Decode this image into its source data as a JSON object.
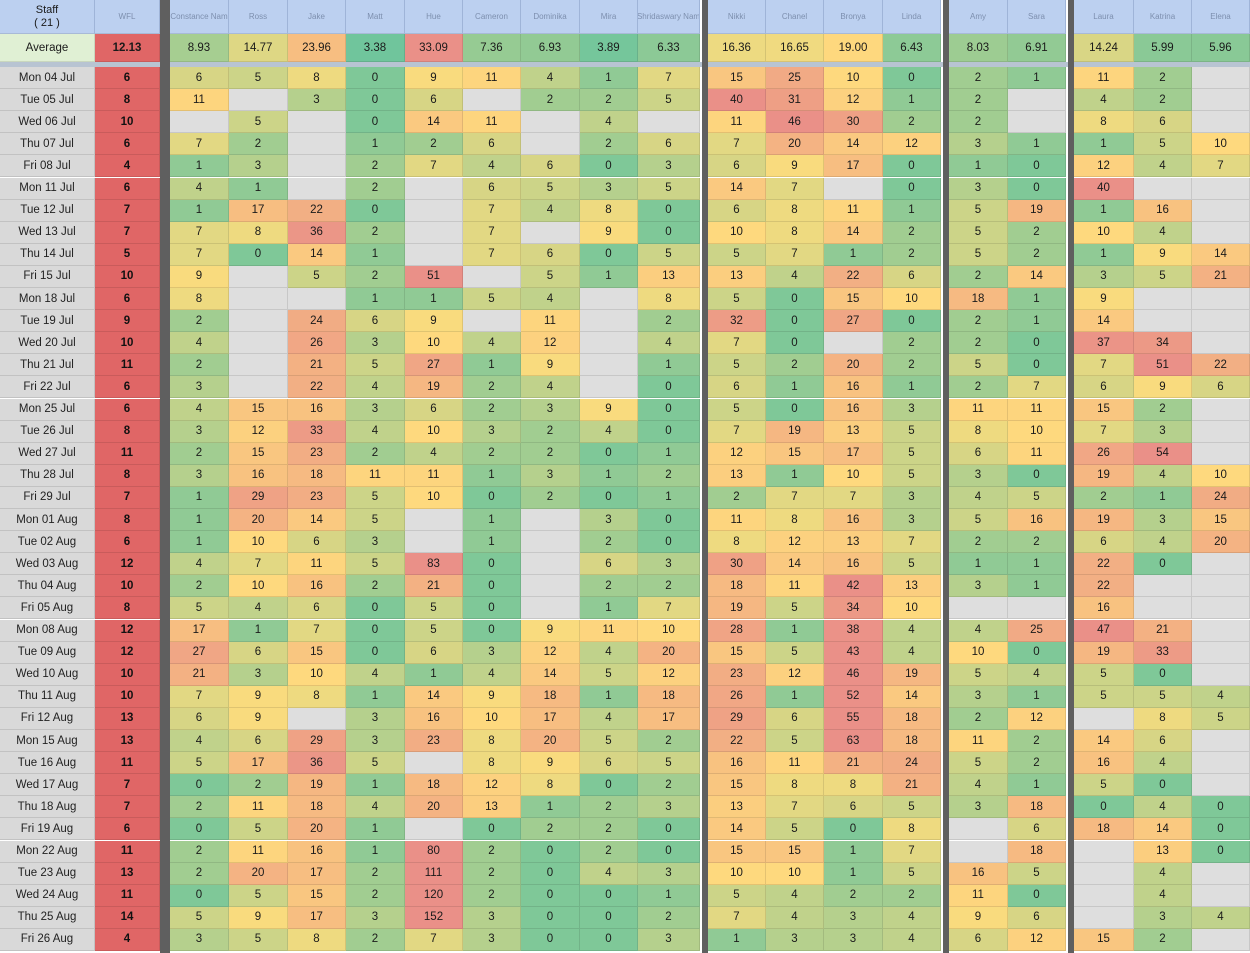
{
  "sheet": {
    "staff_header": "Staff",
    "staff_count": "( 21 )",
    "average_label": "Average",
    "column_names": [
      "WFL",
      "Constance Nam",
      "Ross",
      "Jake",
      "Matt",
      "Hue",
      "Cameron",
      "Dominika",
      "Mira",
      "Shridaswary Nam",
      "Nikki",
      "Chanel",
      "Bronya",
      "Linda",
      "Amy",
      "Sara",
      "Laura",
      "Katrina",
      "Elena"
    ],
    "averages": [
      "12.13",
      "8.93",
      "14.77",
      "23.96",
      "3.38",
      "33.09",
      "7.36",
      "6.93",
      "3.89",
      "6.33",
      "16.36",
      "16.65",
      "19.00",
      "6.43",
      "8.03",
      "6.91",
      "14.24",
      "5.99",
      "5.96"
    ],
    "rows": [
      {
        "date": "Mon 04 Jul",
        "cells": [
          "6",
          "6",
          "5",
          "8",
          "0",
          "9",
          "11",
          "4",
          "1",
          "7",
          "15",
          "25",
          "10",
          "0",
          "2",
          "1",
          "11",
          "2",
          ""
        ]
      },
      {
        "date": "Tue 05 Jul",
        "cells": [
          "8",
          "11",
          "",
          "3",
          "0",
          "6",
          "",
          "2",
          "2",
          "5",
          "40",
          "31",
          "12",
          "1",
          "2",
          "",
          "4",
          "2",
          ""
        ]
      },
      {
        "date": "Wed 06 Jul",
        "cells": [
          "10",
          "",
          "5",
          "",
          "0",
          "14",
          "11",
          "",
          "4",
          "",
          "11",
          "46",
          "30",
          "2",
          "2",
          "",
          "8",
          "6",
          ""
        ]
      },
      {
        "date": "Thu 07 Jul",
        "cells": [
          "6",
          "7",
          "2",
          "",
          "1",
          "2",
          "6",
          "",
          "2",
          "6",
          "7",
          "20",
          "14",
          "12",
          "3",
          "1",
          "1",
          "5",
          "10"
        ]
      },
      {
        "date": "Fri 08 Jul",
        "cells": [
          "4",
          "1",
          "3",
          "",
          "2",
          "7",
          "4",
          "6",
          "0",
          "3",
          "6",
          "9",
          "17",
          "0",
          "1",
          "0",
          "12",
          "4",
          "7"
        ]
      },
      {
        "date": "Mon 11 Jul",
        "cells": [
          "6",
          "4",
          "1",
          "",
          "2",
          "",
          "6",
          "5",
          "3",
          "5",
          "14",
          "7",
          "",
          "0",
          "3",
          "0",
          "40",
          "",
          ""
        ]
      },
      {
        "date": "Tue 12 Jul",
        "cells": [
          "7",
          "1",
          "17",
          "22",
          "0",
          "",
          "7",
          "4",
          "8",
          "0",
          "6",
          "8",
          "11",
          "1",
          "5",
          "19",
          "1",
          "16",
          ""
        ]
      },
      {
        "date": "Wed 13 Jul",
        "cells": [
          "7",
          "7",
          "8",
          "36",
          "2",
          "",
          "7",
          "",
          "9",
          "0",
          "10",
          "8",
          "14",
          "2",
          "5",
          "2",
          "10",
          "4",
          ""
        ]
      },
      {
        "date": "Thu 14 Jul",
        "cells": [
          "5",
          "7",
          "0",
          "14",
          "1",
          "",
          "7",
          "6",
          "0",
          "5",
          "5",
          "7",
          "1",
          "2",
          "5",
          "2",
          "1",
          "9",
          "14"
        ]
      },
      {
        "date": "Fri 15 Jul",
        "cells": [
          "10",
          "9",
          "",
          "5",
          "2",
          "51",
          "",
          "5",
          "1",
          "13",
          "13",
          "4",
          "22",
          "6",
          "2",
          "14",
          "3",
          "5",
          "21"
        ]
      },
      {
        "date": "Mon 18 Jul",
        "cells": [
          "6",
          "8",
          "",
          "",
          "1",
          "1",
          "5",
          "4",
          "",
          "8",
          "5",
          "0",
          "15",
          "10",
          "18",
          "1",
          "9",
          "",
          ""
        ]
      },
      {
        "date": "Tue 19 Jul",
        "cells": [
          "9",
          "2",
          "",
          "24",
          "6",
          "9",
          "",
          "11",
          "",
          "2",
          "32",
          "0",
          "27",
          "0",
          "2",
          "1",
          "14",
          "",
          ""
        ]
      },
      {
        "date": "Wed 20 Jul",
        "cells": [
          "10",
          "4",
          "",
          "26",
          "3",
          "10",
          "4",
          "12",
          "",
          "4",
          "7",
          "0",
          "",
          "2",
          "2",
          "0",
          "37",
          "34",
          ""
        ]
      },
      {
        "date": "Thu 21 Jul",
        "cells": [
          "11",
          "2",
          "",
          "21",
          "5",
          "27",
          "1",
          "9",
          "",
          "1",
          "5",
          "2",
          "20",
          "2",
          "5",
          "0",
          "7",
          "51",
          "22"
        ]
      },
      {
        "date": "Fri 22 Jul",
        "cells": [
          "6",
          "3",
          "",
          "22",
          "4",
          "19",
          "2",
          "4",
          "",
          "0",
          "6",
          "1",
          "16",
          "1",
          "2",
          "7",
          "6",
          "9",
          "6"
        ]
      },
      {
        "date": "Mon 25 Jul",
        "cells": [
          "6",
          "4",
          "15",
          "16",
          "3",
          "6",
          "2",
          "3",
          "9",
          "0",
          "5",
          "0",
          "16",
          "3",
          "11",
          "11",
          "15",
          "2",
          ""
        ]
      },
      {
        "date": "Tue 26 Jul",
        "cells": [
          "8",
          "3",
          "12",
          "33",
          "4",
          "10",
          "3",
          "2",
          "4",
          "0",
          "7",
          "19",
          "13",
          "5",
          "8",
          "10",
          "7",
          "3",
          ""
        ]
      },
      {
        "date": "Wed 27 Jul",
        "cells": [
          "11",
          "2",
          "15",
          "23",
          "2",
          "4",
          "2",
          "2",
          "0",
          "1",
          "12",
          "15",
          "17",
          "5",
          "6",
          "11",
          "26",
          "54",
          ""
        ]
      },
      {
        "date": "Thu 28 Jul",
        "cells": [
          "8",
          "3",
          "16",
          "18",
          "11",
          "11",
          "1",
          "3",
          "1",
          "2",
          "13",
          "1",
          "10",
          "5",
          "3",
          "0",
          "19",
          "4",
          "10"
        ]
      },
      {
        "date": "Fri 29 Jul",
        "cells": [
          "7",
          "1",
          "29",
          "23",
          "5",
          "10",
          "0",
          "2",
          "0",
          "1",
          "2",
          "7",
          "7",
          "3",
          "4",
          "5",
          "2",
          "1",
          "24"
        ]
      },
      {
        "date": "Mon 01 Aug",
        "cells": [
          "8",
          "1",
          "20",
          "14",
          "5",
          "",
          "1",
          "",
          "3",
          "0",
          "11",
          "8",
          "16",
          "3",
          "5",
          "16",
          "19",
          "3",
          "15"
        ]
      },
      {
        "date": "Tue 02 Aug",
        "cells": [
          "6",
          "1",
          "10",
          "6",
          "3",
          "",
          "1",
          "",
          "2",
          "0",
          "8",
          "12",
          "13",
          "7",
          "2",
          "2",
          "6",
          "4",
          "20"
        ]
      },
      {
        "date": "Wed 03 Aug",
        "cells": [
          "12",
          "4",
          "7",
          "11",
          "5",
          "83",
          "0",
          "",
          "6",
          "3",
          "30",
          "14",
          "16",
          "5",
          "1",
          "1",
          "22",
          "0",
          ""
        ]
      },
      {
        "date": "Thu 04 Aug",
        "cells": [
          "10",
          "2",
          "10",
          "16",
          "2",
          "21",
          "0",
          "",
          "2",
          "2",
          "18",
          "11",
          "42",
          "13",
          "3",
          "1",
          "22",
          "",
          ""
        ]
      },
      {
        "date": "Fri 05 Aug",
        "cells": [
          "8",
          "5",
          "4",
          "6",
          "0",
          "5",
          "0",
          "",
          "1",
          "7",
          "19",
          "5",
          "34",
          "10",
          "",
          "",
          "16",
          "",
          ""
        ]
      },
      {
        "date": "Mon 08 Aug",
        "cells": [
          "12",
          "17",
          "1",
          "7",
          "0",
          "5",
          "0",
          "9",
          "11",
          "10",
          "28",
          "1",
          "38",
          "4",
          "4",
          "25",
          "47",
          "21",
          ""
        ]
      },
      {
        "date": "Tue 09 Aug",
        "cells": [
          "12",
          "27",
          "6",
          "15",
          "0",
          "6",
          "3",
          "12",
          "4",
          "20",
          "15",
          "5",
          "43",
          "4",
          "10",
          "0",
          "19",
          "33",
          ""
        ]
      },
      {
        "date": "Wed 10 Aug",
        "cells": [
          "10",
          "21",
          "3",
          "10",
          "4",
          "1",
          "4",
          "14",
          "5",
          "12",
          "23",
          "12",
          "46",
          "19",
          "5",
          "4",
          "5",
          "0",
          ""
        ]
      },
      {
        "date": "Thu 11 Aug",
        "cells": [
          "10",
          "7",
          "9",
          "8",
          "1",
          "14",
          "9",
          "18",
          "1",
          "18",
          "26",
          "1",
          "52",
          "14",
          "3",
          "1",
          "5",
          "5",
          "4"
        ]
      },
      {
        "date": "Fri 12 Aug",
        "cells": [
          "13",
          "6",
          "9",
          "",
          "3",
          "16",
          "10",
          "17",
          "4",
          "17",
          "29",
          "6",
          "55",
          "18",
          "2",
          "12",
          "",
          "8",
          "5"
        ]
      },
      {
        "date": "Mon 15 Aug",
        "cells": [
          "13",
          "4",
          "6",
          "29",
          "3",
          "23",
          "8",
          "20",
          "5",
          "2",
          "22",
          "5",
          "63",
          "18",
          "11",
          "2",
          "14",
          "6",
          ""
        ]
      },
      {
        "date": "Tue 16 Aug",
        "cells": [
          "11",
          "5",
          "17",
          "36",
          "5",
          "",
          "8",
          "9",
          "6",
          "5",
          "16",
          "11",
          "21",
          "24",
          "5",
          "2",
          "16",
          "4",
          ""
        ]
      },
      {
        "date": "Wed 17 Aug",
        "cells": [
          "7",
          "0",
          "2",
          "19",
          "1",
          "18",
          "12",
          "8",
          "0",
          "2",
          "15",
          "8",
          "8",
          "21",
          "4",
          "1",
          "5",
          "0",
          ""
        ]
      },
      {
        "date": "Thu 18 Aug",
        "cells": [
          "7",
          "2",
          "11",
          "18",
          "4",
          "20",
          "13",
          "1",
          "2",
          "3",
          "13",
          "7",
          "6",
          "5",
          "3",
          "18",
          "0",
          "4",
          "0"
        ]
      },
      {
        "date": "Fri 19 Aug",
        "cells": [
          "6",
          "0",
          "5",
          "20",
          "1",
          "",
          "0",
          "2",
          "2",
          "0",
          "14",
          "5",
          "0",
          "8",
          "",
          "6",
          "18",
          "14",
          "0"
        ]
      },
      {
        "date": "Mon 22 Aug",
        "cells": [
          "11",
          "2",
          "11",
          "16",
          "1",
          "80",
          "2",
          "0",
          "2",
          "0",
          "15",
          "15",
          "1",
          "7",
          "",
          "18",
          "",
          "13",
          "0"
        ]
      },
      {
        "date": "Tue 23 Aug",
        "cells": [
          "13",
          "2",
          "20",
          "17",
          "2",
          "111",
          "2",
          "0",
          "4",
          "3",
          "10",
          "10",
          "1",
          "5",
          "16",
          "5",
          "",
          "4",
          ""
        ]
      },
      {
        "date": "Wed 24 Aug",
        "cells": [
          "11",
          "0",
          "5",
          "15",
          "2",
          "120",
          "2",
          "0",
          "0",
          "1",
          "5",
          "4",
          "2",
          "2",
          "11",
          "0",
          "",
          "4",
          ""
        ]
      },
      {
        "date": "Thu 25 Aug",
        "cells": [
          "14",
          "5",
          "9",
          "17",
          "3",
          "152",
          "3",
          "0",
          "0",
          "2",
          "7",
          "4",
          "3",
          "4",
          "9",
          "6",
          "",
          "3",
          "4"
        ]
      },
      {
        "date": "Fri 26 Aug",
        "cells": [
          "4",
          "3",
          "5",
          "8",
          "2",
          "7",
          "3",
          "0",
          "0",
          "3",
          "1",
          "3",
          "3",
          "4",
          "6",
          "12",
          "15",
          "2",
          ""
        ]
      }
    ],
    "colors": {
      "header_bg": "#bcd0f0",
      "average_label_bg": "#e0f0d4",
      "date_bg": "#d9d9d9",
      "wfl_bg": "#e06666",
      "empty_bg": "#dedede",
      "separator": "#5f5f5f",
      "scale_low": "#57bb8a",
      "scale_mid": "#ffd666",
      "scale_high": "#e67c73"
    }
  }
}
